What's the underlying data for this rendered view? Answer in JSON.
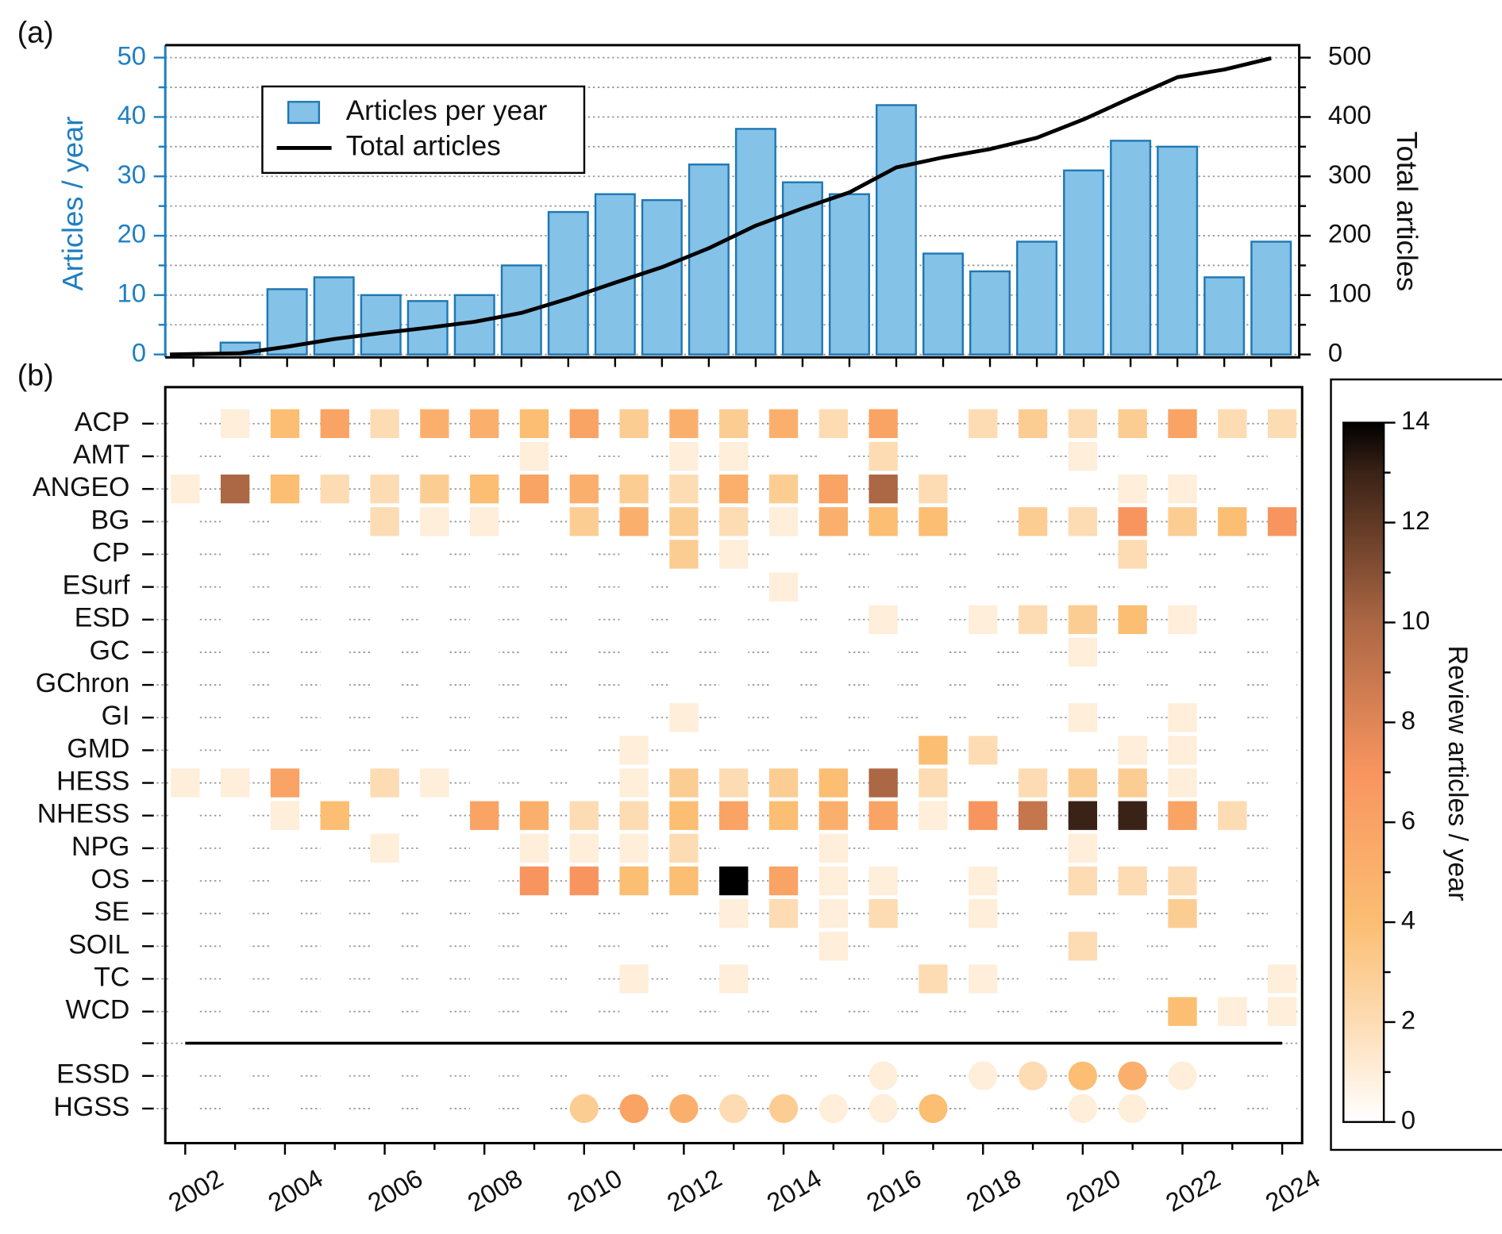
{
  "chart_data": [
    {
      "type": "bar_line",
      "label": "(a)",
      "x": [
        2002,
        2003,
        2004,
        2005,
        2006,
        2007,
        2008,
        2009,
        2010,
        2011,
        2012,
        2013,
        2014,
        2015,
        2016,
        2017,
        2018,
        2019,
        2020,
        2021,
        2022,
        2023,
        2024
      ],
      "xlim": [
        2000.4,
        2024.6
      ],
      "xticks": [
        2001,
        2002,
        2003,
        2004,
        2005,
        2006,
        2007,
        2008,
        2009,
        2010,
        2011,
        2012,
        2013,
        2014,
        2015,
        2016,
        2017,
        2018,
        2019,
        2020,
        2021,
        2022,
        2023,
        2024
      ],
      "ylim": [
        0,
        50
      ],
      "yticks": [
        0,
        10,
        20,
        30,
        40,
        50
      ],
      "yminorticks": [
        5,
        15,
        25,
        35,
        45
      ],
      "y2lim": [
        0,
        500
      ],
      "y2ticks": [
        0,
        100,
        200,
        300,
        400,
        500
      ],
      "y2minorticks": [
        50,
        150,
        250,
        350,
        450
      ],
      "ylabel": "Articles / year",
      "y2label": "Total articles",
      "grid": true,
      "legend": "upper left",
      "series": [
        {
          "name": "Articles per year",
          "type": "bar",
          "color": "#85c2e7",
          "edgecolor": "#1f78b4",
          "values": [
            2,
            11,
            13,
            10,
            9,
            10,
            15,
            24,
            27,
            26,
            32,
            38,
            29,
            27,
            42,
            17,
            14,
            19,
            31,
            36,
            35,
            13,
            19
          ]
        },
        {
          "name": "Total articles",
          "type": "line",
          "axis": "y2",
          "color": "#000000",
          "x": [
            2000.5,
            2002,
            2003,
            2004,
            2005,
            2006,
            2007,
            2008,
            2009,
            2010,
            2011,
            2012,
            2013,
            2014,
            2015,
            2016,
            2017,
            2018,
            2019,
            2020,
            2021,
            2022,
            2023,
            2024
          ],
          "values": [
            0,
            2,
            13,
            26,
            36,
            45,
            55,
            70,
            94,
            121,
            147,
            179,
            217,
            246,
            273,
            315,
            332,
            346,
            365,
            396,
            432,
            467,
            480,
            499
          ]
        }
      ]
    },
    {
      "type": "heatmap",
      "label": "(b)",
      "x": [
        2002,
        2003,
        2004,
        2005,
        2006,
        2007,
        2008,
        2009,
        2010,
        2011,
        2012,
        2013,
        2014,
        2015,
        2016,
        2017,
        2018,
        2019,
        2020,
        2021,
        2022,
        2023,
        2024
      ],
      "xlim": [
        2001.6,
        2024.4
      ],
      "xticks": [
        2002,
        2004,
        2006,
        2008,
        2010,
        2012,
        2014,
        2016,
        2018,
        2020,
        2022,
        2024
      ],
      "xminorticks": [
        2003,
        2005,
        2007,
        2009,
        2011,
        2013,
        2015,
        2017,
        2019,
        2021,
        2023
      ],
      "rows": [
        {
          "name": "ACP",
          "marker": "square",
          "values": [
            0,
            1,
            4,
            6,
            2,
            5,
            5,
            4,
            6,
            3,
            5,
            3,
            5,
            2,
            6,
            0,
            2,
            3,
            2,
            3,
            6,
            2,
            2
          ]
        },
        {
          "name": "AMT",
          "marker": "square",
          "values": [
            0,
            0,
            0,
            0,
            0,
            0,
            0,
            1,
            0,
            0,
            1,
            1,
            0,
            0,
            2,
            0,
            0,
            0,
            1,
            0,
            0,
            0,
            0
          ]
        },
        {
          "name": "ANGEO",
          "marker": "square",
          "values": [
            1,
            10,
            4,
            2,
            2,
            3,
            4,
            6,
            5,
            3,
            2,
            5,
            3,
            6,
            10,
            2,
            0,
            0,
            0,
            1,
            1,
            0,
            0
          ]
        },
        {
          "name": "BG",
          "marker": "square",
          "values": [
            0,
            0,
            0,
            0,
            2,
            1,
            1,
            0,
            3,
            5,
            3,
            2,
            1,
            5,
            4,
            4,
            0,
            3,
            2,
            7,
            3,
            4,
            7
          ]
        },
        {
          "name": "CP",
          "marker": "square",
          "values": [
            0,
            0,
            0,
            0,
            0,
            0,
            0,
            0,
            0,
            0,
            3,
            1,
            0,
            0,
            0,
            0,
            0,
            0,
            0,
            2,
            0,
            0,
            0
          ]
        },
        {
          "name": "ESurf",
          "marker": "square",
          "values": [
            0,
            0,
            0,
            0,
            0,
            0,
            0,
            0,
            0,
            0,
            0,
            0,
            1,
            0,
            0,
            0,
            0,
            0,
            0,
            0,
            0,
            0,
            0
          ]
        },
        {
          "name": "ESD",
          "marker": "square",
          "values": [
            0,
            0,
            0,
            0,
            0,
            0,
            0,
            0,
            0,
            0,
            0,
            0,
            0,
            0,
            1,
            0,
            1,
            2,
            3,
            4,
            1,
            0,
            0
          ]
        },
        {
          "name": "GC",
          "marker": "square",
          "values": [
            0,
            0,
            0,
            0,
            0,
            0,
            0,
            0,
            0,
            0,
            0,
            0,
            0,
            0,
            0,
            0,
            0,
            0,
            1,
            0,
            0,
            0,
            0
          ]
        },
        {
          "name": "GChron",
          "marker": "square",
          "values": [
            0,
            0,
            0,
            0,
            0,
            0,
            0,
            0,
            0,
            0,
            0,
            0,
            0,
            0,
            0,
            0,
            0,
            0,
            0,
            0,
            0,
            0,
            0
          ]
        },
        {
          "name": "GI",
          "marker": "square",
          "values": [
            0,
            0,
            0,
            0,
            0,
            0,
            0,
            0,
            0,
            0,
            1,
            0,
            0,
            0,
            0,
            0,
            0,
            0,
            1,
            0,
            1,
            0,
            0
          ]
        },
        {
          "name": "GMD",
          "marker": "square",
          "values": [
            0,
            0,
            0,
            0,
            0,
            0,
            0,
            0,
            0,
            1,
            0,
            0,
            0,
            0,
            0,
            4,
            2,
            0,
            0,
            1,
            1,
            0,
            0
          ]
        },
        {
          "name": "HESS",
          "marker": "square",
          "values": [
            1,
            1,
            6,
            0,
            2,
            1,
            0,
            0,
            0,
            1,
            3,
            2,
            3,
            4,
            10,
            2,
            0,
            2,
            3,
            3,
            1,
            0,
            0
          ]
        },
        {
          "name": "NHESS",
          "marker": "square",
          "values": [
            0,
            0,
            1,
            4,
            0,
            0,
            6,
            5,
            2,
            2,
            4,
            6,
            4,
            5,
            6,
            1,
            7,
            9,
            13,
            13,
            6,
            2,
            0
          ]
        },
        {
          "name": "NPG",
          "marker": "square",
          "values": [
            0,
            0,
            0,
            0,
            1,
            0,
            0,
            1,
            1,
            1,
            2,
            0,
            0,
            1,
            0,
            0,
            0,
            0,
            1,
            0,
            0,
            0,
            0
          ]
        },
        {
          "name": "OS",
          "marker": "square",
          "values": [
            0,
            0,
            0,
            0,
            0,
            0,
            0,
            7,
            7,
            4,
            4,
            14,
            6,
            1,
            1,
            0,
            1,
            0,
            2,
            2,
            2,
            0,
            0
          ]
        },
        {
          "name": "SE",
          "marker": "square",
          "values": [
            0,
            0,
            0,
            0,
            0,
            0,
            0,
            0,
            0,
            0,
            0,
            1,
            2,
            1,
            2,
            0,
            1,
            0,
            0,
            0,
            3,
            0,
            0
          ]
        },
        {
          "name": "SOIL",
          "marker": "square",
          "values": [
            0,
            0,
            0,
            0,
            0,
            0,
            0,
            0,
            0,
            0,
            0,
            0,
            0,
            1,
            0,
            0,
            0,
            0,
            2,
            0,
            0,
            0,
            0
          ]
        },
        {
          "name": "TC",
          "marker": "square",
          "values": [
            0,
            0,
            0,
            0,
            0,
            0,
            0,
            0,
            0,
            1,
            0,
            1,
            0,
            0,
            0,
            2,
            1,
            0,
            0,
            0,
            0,
            0,
            1
          ]
        },
        {
          "name": "WCD",
          "marker": "square",
          "values": [
            0,
            0,
            0,
            0,
            0,
            0,
            0,
            0,
            0,
            0,
            0,
            0,
            0,
            0,
            0,
            0,
            0,
            0,
            0,
            0,
            4,
            1,
            1
          ]
        },
        {
          "name": "ESSD",
          "marker": "circle",
          "values": [
            0,
            0,
            0,
            0,
            0,
            0,
            0,
            0,
            0,
            0,
            0,
            0,
            0,
            0,
            1,
            0,
            1,
            2,
            4,
            5,
            1,
            0,
            0
          ]
        },
        {
          "name": "HGSS",
          "marker": "circle",
          "values": [
            0,
            0,
            0,
            0,
            0,
            0,
            0,
            0,
            3,
            6,
            5,
            2,
            3,
            1,
            1,
            4,
            0,
            0,
            1,
            1,
            0,
            0,
            0
          ]
        }
      ],
      "colorbar": {
        "label": "Review articles / year",
        "lim": [
          0,
          14
        ],
        "ticks": [
          0,
          2,
          4,
          6,
          8,
          10,
          12,
          14
        ],
        "minorticks": [
          1,
          3,
          5,
          7,
          9,
          11,
          13
        ],
        "colormap": [
          [
            0,
            "#ffffff"
          ],
          [
            2,
            "#fddcb4"
          ],
          [
            4,
            "#fbbe72"
          ],
          [
            7,
            "#f8955f"
          ],
          [
            10,
            "#ac6744"
          ],
          [
            13,
            "#3a2216"
          ],
          [
            14,
            "#000000"
          ]
        ]
      }
    }
  ]
}
